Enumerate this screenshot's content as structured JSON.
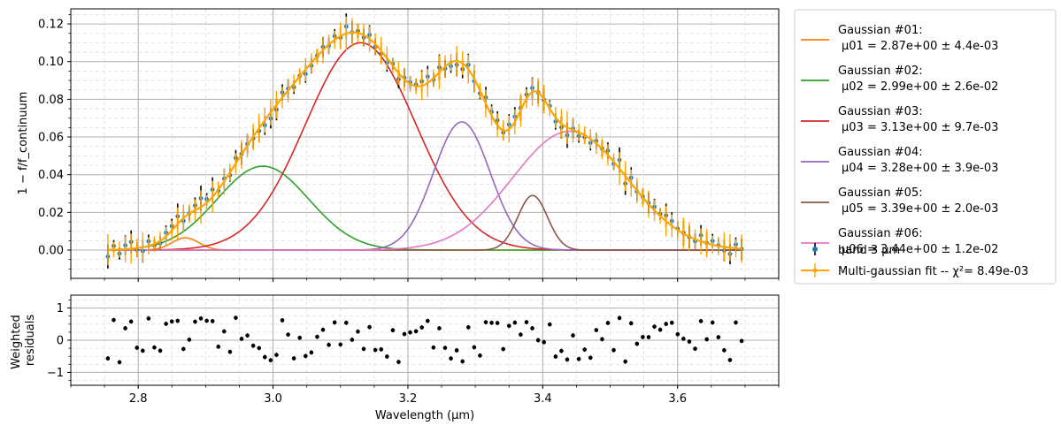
{
  "chart_data": [
    {
      "type": "line",
      "ylabel": "1 − f/f_continuum",
      "xlim": [
        2.7,
        3.75
      ],
      "ylim": [
        -0.015,
        0.128
      ],
      "xticks": [
        2.8,
        3.0,
        3.2,
        3.4,
        3.6
      ],
      "xtick_labels": [
        "2.8",
        "3.0",
        "3.2",
        "3.4",
        "3.6"
      ],
      "yticks": [
        0.0,
        0.02,
        0.04,
        0.06,
        0.08,
        0.1,
        0.12
      ],
      "ytick_labels": [
        "0.00",
        "0.02",
        "0.04",
        "0.06",
        "0.08",
        "0.10",
        "0.12"
      ],
      "grid": true,
      "legend_position": "outside-right",
      "gaussians": [
        {
          "name": "Gaussian #01:",
          "param": "μ01 =  2.87e+00 ±  4.4e-03",
          "mu": 2.87,
          "amp": 0.0065,
          "sigma": 0.02,
          "color": "#ff7f0e"
        },
        {
          "name": "Gaussian #02:",
          "param": "μ02 =  2.99e+00 ±  2.6e-02",
          "mu": 2.985,
          "amp": 0.0445,
          "sigma": 0.068,
          "color": "#2ca02c"
        },
        {
          "name": "Gaussian #03:",
          "param": "μ03 =  3.13e+00 ±  9.7e-03",
          "mu": 3.13,
          "amp": 0.11,
          "sigma": 0.082,
          "color": "#d62728"
        },
        {
          "name": "Gaussian #04:",
          "param": "μ04 =  3.28e+00 ±  3.9e-03",
          "mu": 3.28,
          "amp": 0.068,
          "sigma": 0.042,
          "color": "#9467bd"
        },
        {
          "name": "Gaussian #05:",
          "param": "μ05 =  3.39e+00 ±  2.0e-03",
          "mu": 3.385,
          "amp": 0.029,
          "sigma": 0.022,
          "color": "#8c564b"
        },
        {
          "name": "Gaussian #06:",
          "param": "μ06 =  3.44e+00 ±  1.2e-02",
          "mu": 3.44,
          "amp": 0.063,
          "sigma": 0.085,
          "color": "#e377c2"
        }
      ],
      "series": [
        {
          "name": "band 3 μm",
          "color": "#1f77b4"
        },
        {
          "name": "Multi-gaussian fit -- χ²=  8.49e-03",
          "color": "#ffa500"
        }
      ]
    },
    {
      "type": "scatter",
      "xlabel": "Wavelength (μm)",
      "ylabel": "Weighted residuals",
      "xlim": [
        2.7,
        3.75
      ],
      "ylim": [
        -1.4,
        1.4
      ],
      "xticks": [
        2.8,
        3.0,
        3.2,
        3.4,
        3.6
      ],
      "xtick_labels": [
        "2.8",
        "3.0",
        "3.2",
        "3.4",
        "3.6"
      ],
      "yticks": [
        -1,
        0,
        1
      ],
      "ytick_labels": [
        "−1",
        "0",
        "1"
      ],
      "grid": true
    }
  ]
}
